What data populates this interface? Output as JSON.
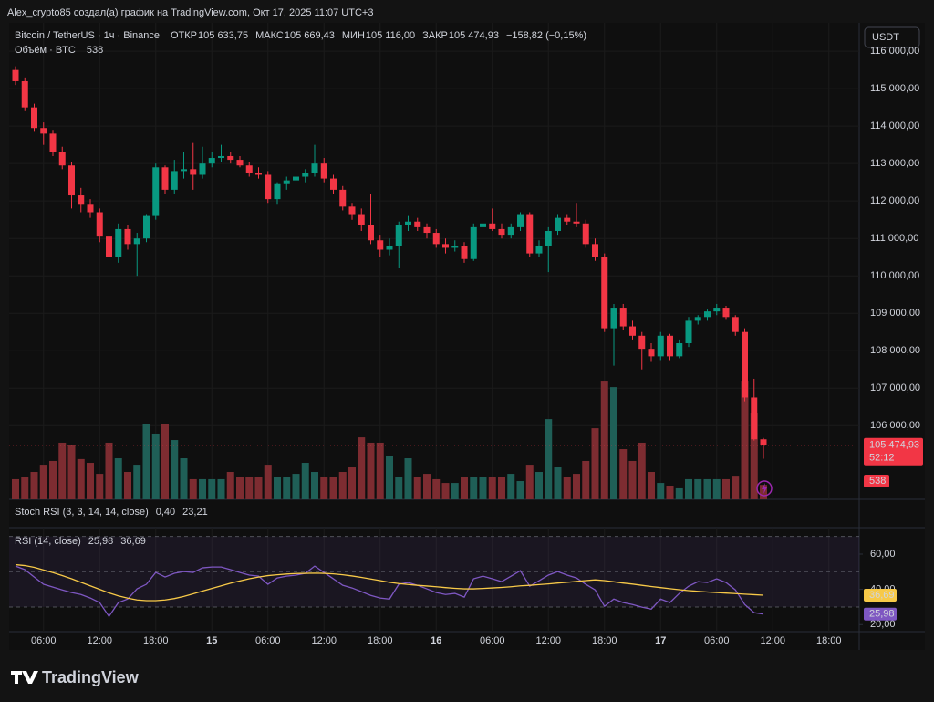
{
  "header": {
    "title": "Alex_crypto85 создал(а) график на TradingView.com, Окт 17, 2025 11:07 UTC+3"
  },
  "footer": {
    "logo": "TradingView"
  },
  "chart_data": [
    {
      "type": "candlestick",
      "title": "Bitcoin / TetherUS · 1ч · Binance",
      "legend": {
        "open_label": "ОТКР",
        "open": "105 633,75",
        "high_label": "МАКС",
        "high": "105 669,43",
        "low_label": "МИН",
        "low": "105 116,00",
        "close_label": "ЗАКР",
        "close": "105 474,93",
        "change": "−158,82 (−0,15%)"
      },
      "currency": "USDT",
      "categories": [
        null,
        null,
        null,
        "06:00",
        null,
        null,
        null,
        null,
        null,
        "12:00",
        null,
        null,
        null,
        null,
        null,
        "18:00",
        null,
        null,
        null,
        null,
        null,
        "15",
        null,
        null,
        null,
        null,
        null,
        "06:00",
        null,
        null,
        null,
        null,
        null,
        "12:00",
        null,
        null,
        null,
        null,
        null,
        "18:00",
        null,
        null,
        null,
        null,
        null,
        "16",
        null,
        null,
        null,
        null,
        null,
        "06:00",
        null,
        null,
        null,
        null,
        null,
        "12:00",
        null,
        null,
        null,
        null,
        null,
        "18:00",
        null,
        null,
        null,
        null,
        null,
        "17",
        null,
        null,
        null,
        null,
        null,
        "06:00",
        null,
        null,
        null,
        null,
        null,
        "12:00",
        null,
        null,
        null,
        null,
        null,
        "18:00",
        null,
        null,
        null
      ],
      "open": [
        115500,
        115200,
        114500,
        113950,
        113800,
        113300,
        112950,
        112150,
        111900,
        111700,
        111050,
        110500,
        111250,
        110850,
        111000,
        111600,
        112900,
        112300,
        112800,
        112850,
        112700,
        113000,
        113150,
        113200,
        113100,
        112950,
        112750,
        112700,
        112050,
        112450,
        112550,
        112650,
        112750,
        113000,
        112600,
        112300,
        111850,
        111650,
        111350,
        110950,
        110700,
        110800,
        111350,
        111450,
        111300,
        111150,
        110850,
        110750,
        110800,
        110450,
        111300,
        111400,
        111250,
        111100,
        111300,
        111650,
        110600,
        110800,
        111200,
        111550,
        111450,
        111400,
        110850,
        110500,
        108600,
        109150,
        108650,
        108400,
        108050,
        107850,
        108400,
        107850,
        108200,
        108800,
        108900,
        109050,
        109150,
        108900,
        108500,
        106750,
        105633.75,
        null,
        null,
        null,
        null,
        null,
        null,
        null,
        null,
        null,
        null
      ],
      "high": [
        115600,
        115300,
        114600,
        114100,
        113900,
        113450,
        113050,
        112350,
        112050,
        111800,
        111200,
        111400,
        111350,
        111150,
        111650,
        113000,
        112950,
        113100,
        113300,
        113550,
        113450,
        113300,
        113500,
        113300,
        113200,
        113050,
        112900,
        112800,
        112500,
        112650,
        112750,
        112850,
        113500,
        113150,
        112700,
        112400,
        111950,
        111800,
        112200,
        111100,
        111000,
        111450,
        111600,
        111550,
        111400,
        111250,
        111000,
        110950,
        110900,
        111400,
        111550,
        111800,
        111400,
        111400,
        111700,
        111700,
        110950,
        111300,
        111650,
        111650,
        111950,
        111500,
        111000,
        110600,
        109250,
        109250,
        108800,
        108500,
        108200,
        108500,
        108450,
        108300,
        108900,
        108950,
        109100,
        109250,
        109200,
        108950,
        108600,
        107250,
        105669.43,
        null,
        null,
        null,
        null,
        null,
        null,
        null,
        null,
        null,
        null
      ],
      "low": [
        115100,
        114400,
        113850,
        113500,
        113200,
        112850,
        111800,
        111700,
        111550,
        110900,
        110050,
        110350,
        110700,
        110000,
        110900,
        111500,
        112200,
        112200,
        112600,
        112300,
        112600,
        112900,
        113050,
        113000,
        112900,
        112650,
        112600,
        111950,
        111900,
        112300,
        112450,
        112500,
        112650,
        112500,
        112200,
        111750,
        111500,
        111200,
        110850,
        110500,
        110550,
        110200,
        111200,
        111200,
        111000,
        110750,
        110600,
        110650,
        110350,
        110400,
        111200,
        111200,
        111000,
        111000,
        111200,
        110500,
        110500,
        110100,
        111100,
        111350,
        111300,
        110750,
        110400,
        108500,
        107600,
        108550,
        108300,
        107500,
        107700,
        107750,
        107750,
        107800,
        108100,
        108700,
        108800,
        108950,
        108850,
        108400,
        106650,
        105600,
        105116,
        null,
        null,
        null,
        null,
        null,
        null,
        null,
        null,
        null,
        null
      ],
      "close": [
        115200,
        114500,
        113950,
        113800,
        113300,
        112950,
        112150,
        111900,
        111700,
        111050,
        110500,
        111250,
        110850,
        111000,
        111600,
        112900,
        112300,
        112800,
        112850,
        112700,
        113000,
        113150,
        113200,
        113100,
        112950,
        112750,
        112700,
        112050,
        112450,
        112550,
        112650,
        112750,
        113000,
        112600,
        112300,
        111850,
        111650,
        111350,
        110950,
        110700,
        110800,
        111350,
        111450,
        111300,
        111150,
        110850,
        110750,
        110800,
        110450,
        111300,
        111400,
        111250,
        111100,
        111300,
        111650,
        110600,
        110800,
        111200,
        111550,
        111450,
        111400,
        110850,
        110500,
        108600,
        109150,
        108650,
        108400,
        108050,
        107850,
        108400,
        107850,
        108200,
        108800,
        108900,
        109050,
        109150,
        108900,
        108500,
        106750,
        105633.75,
        105474.93,
        null,
        null,
        null,
        null,
        null,
        null,
        null,
        null,
        null,
        null
      ],
      "up_color": "#089981",
      "down_color": "#f23645",
      "ylim": [
        104030,
        116760
      ],
      "yticks": [
        {
          "value": 106000,
          "label": "106 000,00"
        },
        {
          "value": 107000,
          "label": "107 000,00"
        },
        {
          "value": 108000,
          "label": "108 000,00"
        },
        {
          "value": 109000,
          "label": "109 000,00"
        },
        {
          "value": 110000,
          "label": "110 000,00"
        },
        {
          "value": 111000,
          "label": "111 000,00"
        },
        {
          "value": 112000,
          "label": "112 000,00"
        },
        {
          "value": 113000,
          "label": "113 000,00"
        },
        {
          "value": 114000,
          "label": "114 000,00"
        },
        {
          "value": 115000,
          "label": "115 000,00"
        },
        {
          "value": 116000,
          "label": "116 000,00"
        }
      ],
      "grid": true,
      "last_price": {
        "value": 105474.93,
        "label": "105 474,93"
      },
      "countdown": "52:12",
      "volume": {
        "title": "Объём · BTC",
        "values": [
          750,
          850,
          1020,
          1290,
          1430,
          2110,
          2040,
          1500,
          1360,
          950,
          2110,
          1530,
          1020,
          1290,
          2790,
          2450,
          2790,
          2210,
          1530,
          750,
          750,
          750,
          750,
          1020,
          850,
          850,
          850,
          1290,
          850,
          850,
          950,
          1360,
          1020,
          850,
          850,
          1020,
          1190,
          2310,
          2110,
          2110,
          1630,
          850,
          1530,
          850,
          950,
          750,
          610,
          610,
          850,
          850,
          850,
          850,
          850,
          950,
          680,
          1290,
          1020,
          2990,
          1190,
          850,
          950,
          1430,
          2650,
          4420,
          4180,
          1870,
          1430,
          2110,
          1020,
          610,
          510,
          410,
          750,
          750,
          750,
          750,
          750,
          880,
          4420,
          3230,
          538,
          null,
          null,
          null,
          null,
          null,
          null,
          null,
          null,
          null,
          null
        ],
        "up_color": "#1f5f57",
        "down_color": "#7d2c31",
        "ylim": [
          0,
          5000
        ]
      }
    },
    {
      "type": "indicator",
      "title": "Stoch RSI (3, 3, 14, 14, close)",
      "legend_values": [
        {
          "label": "0,40",
          "color": "#2962ff"
        },
        {
          "label": "23,21",
          "color": "#ff6d00"
        }
      ]
    },
    {
      "type": "line",
      "title": "RSI (14, close)",
      "ylim": [
        16,
        75
      ],
      "yticks": [
        {
          "value": 60,
          "label": "60,00"
        },
        {
          "value": 40,
          "label": "40,00"
        },
        {
          "value": 20,
          "label": "20,00"
        }
      ],
      "levels": [
        70,
        50,
        30
      ],
      "band_color": "#7e57c2",
      "series": [
        {
          "color": "#7e57c2",
          "last_label": "25,98",
          "values": [
            53.2,
            51.2,
            47.0,
            42.9,
            41.3,
            39.7,
            38.2,
            37.1,
            35.1,
            32.5,
            24.7,
            32.5,
            34.5,
            40.3,
            42.9,
            49.6,
            47.0,
            49.1,
            50.1,
            49.6,
            52.2,
            52.7,
            52.7,
            51.2,
            49.6,
            48.1,
            47.5,
            42.9,
            46.5,
            47.5,
            48.1,
            49.1,
            53.2,
            49.6,
            46.0,
            42.3,
            40.8,
            38.7,
            36.6,
            35.1,
            34.5,
            42.9,
            43.9,
            42.3,
            40.3,
            38.2,
            37.1,
            37.7,
            35.6,
            46.0,
            47.5,
            46.0,
            44.4,
            47.5,
            50.6,
            41.8,
            44.9,
            48.1,
            50.1,
            48.1,
            46.5,
            42.9,
            39.7,
            30.4,
            34.5,
            32.5,
            31.4,
            29.9,
            28.8,
            34.5,
            32.5,
            37.7,
            41.8,
            44.4,
            43.9,
            46.0,
            43.9,
            39.7,
            31.4,
            26.8,
            25.98,
            null,
            null,
            null,
            null,
            null,
            null,
            null,
            null,
            null,
            null
          ]
        },
        {
          "color": "#f7c948",
          "last_label": "36,69",
          "values": [
            54.0,
            53.5,
            52.5,
            51.0,
            49.5,
            47.8,
            46.0,
            44.0,
            42.0,
            40.0,
            38.0,
            36.3,
            35.0,
            34.0,
            33.6,
            33.6,
            34.0,
            34.8,
            36.0,
            37.5,
            39.0,
            40.5,
            42.0,
            43.5,
            44.8,
            46.0,
            47.0,
            47.8,
            48.3,
            48.7,
            49.0,
            49.1,
            49.2,
            49.1,
            48.8,
            48.3,
            47.6,
            46.8,
            45.9,
            45.0,
            44.0,
            43.3,
            42.8,
            42.3,
            41.9,
            41.5,
            41.0,
            40.6,
            40.3,
            40.3,
            40.5,
            40.8,
            41.1,
            41.5,
            42.0,
            42.3,
            42.7,
            43.1,
            43.6,
            44.0,
            44.5,
            45.0,
            45.4,
            45.0,
            44.3,
            43.6,
            43.0,
            42.3,
            41.6,
            41.0,
            40.4,
            39.8,
            39.3,
            38.9,
            38.5,
            38.2,
            37.9,
            37.6,
            37.3,
            37.0,
            36.69,
            null,
            null,
            null,
            null,
            null,
            null,
            null,
            null,
            null,
            null
          ]
        }
      ]
    }
  ]
}
